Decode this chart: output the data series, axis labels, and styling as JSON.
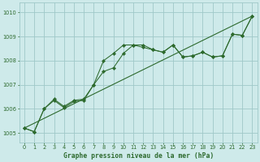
{
  "xlabel": "Graphe pression niveau de la mer (hPa)",
  "bg_color": "#ceeaea",
  "grid_color": "#9fc8c8",
  "line_color": "#2d6a2d",
  "ylim": [
    1004.6,
    1010.4
  ],
  "xlim": [
    -0.5,
    23.5
  ],
  "yticks": [
    1005,
    1006,
    1007,
    1008,
    1009,
    1010
  ],
  "xticks": [
    0,
    1,
    2,
    3,
    4,
    5,
    6,
    7,
    8,
    9,
    10,
    11,
    12,
    13,
    14,
    15,
    16,
    17,
    18,
    19,
    20,
    21,
    22,
    23
  ],
  "line1_x": [
    0,
    1,
    2,
    3,
    4,
    5,
    6,
    7,
    8,
    9,
    10,
    11,
    12,
    13,
    14,
    15,
    16,
    17,
    18,
    19,
    20,
    21,
    22,
    23
  ],
  "line1_y": [
    1005.2,
    1005.05,
    1006.0,
    1006.4,
    1006.1,
    1006.35,
    1006.4,
    1007.0,
    1008.0,
    1008.3,
    1008.65,
    1008.65,
    1008.55,
    1008.45,
    1008.35,
    1008.65,
    1008.15,
    1008.2,
    1008.35,
    1008.15,
    1008.2,
    1009.1,
    1009.05,
    1009.85
  ],
  "line2_x": [
    0,
    1,
    2,
    3,
    4,
    5,
    6,
    7,
    8,
    9,
    10,
    11,
    12,
    13,
    14,
    15,
    16,
    17,
    18,
    19,
    20,
    21,
    22,
    23
  ],
  "line2_y": [
    1005.2,
    1005.05,
    1006.0,
    1006.35,
    1006.05,
    1006.3,
    1006.35,
    1007.0,
    1007.55,
    1007.7,
    1008.3,
    1008.65,
    1008.65,
    1008.45,
    1008.35,
    1008.65,
    1008.15,
    1008.2,
    1008.35,
    1008.15,
    1008.2,
    1009.1,
    1009.05,
    1009.85
  ],
  "trend_x": [
    0,
    23
  ],
  "trend_y": [
    1005.2,
    1009.85
  ]
}
